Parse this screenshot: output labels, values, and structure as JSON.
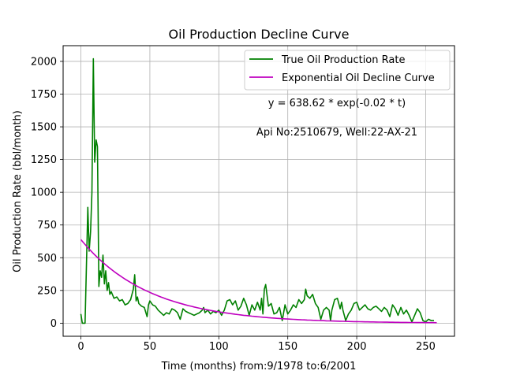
{
  "chart_data": {
    "type": "line",
    "title": "Oil Production Decline Curve",
    "xlabel": "Time (months) from:9/1978 to:6/2001",
    "ylabel": "Oil Production Rate (bbl/month)",
    "xlim": [
      -12.9,
      270.9
    ],
    "ylim": [
      -100,
      2120
    ],
    "xticks": [
      0,
      50,
      100,
      150,
      200,
      250
    ],
    "yticks": [
      0,
      250,
      500,
      750,
      1000,
      1250,
      1500,
      1750,
      2000
    ],
    "grid": true,
    "legend_position": "top-right",
    "annotations": [
      "y = 638.62 * exp(-0.02 * t)",
      "Api No:2510679, Well:22-AX-21"
    ],
    "series": [
      {
        "name": "True Oil Production Rate",
        "color": "#008000",
        "x": [
          0,
          1,
          3,
          5,
          6,
          7,
          8,
          9,
          10,
          11,
          12,
          13,
          14,
          15,
          16,
          17,
          18,
          19,
          20,
          21,
          22,
          24,
          26,
          28,
          30,
          32,
          34,
          36,
          38,
          39,
          40,
          41,
          42,
          44,
          46,
          48,
          49,
          50,
          52,
          54,
          56,
          58,
          60,
          62,
          64,
          66,
          68,
          70,
          72,
          74,
          76,
          78,
          80,
          82,
          84,
          86,
          88,
          89,
          90,
          92,
          94,
          96,
          98,
          100,
          102,
          104,
          106,
          108,
          110,
          112,
          114,
          116,
          118,
          120,
          122,
          124,
          126,
          128,
          130,
          131,
          132,
          133,
          134,
          136,
          138,
          140,
          142,
          144,
          146,
          148,
          150,
          152,
          154,
          156,
          158,
          160,
          162,
          163,
          164,
          166,
          168,
          170,
          172,
          174,
          176,
          178,
          180,
          181,
          182,
          184,
          186,
          188,
          189,
          190,
          192,
          194,
          196,
          198,
          200,
          202,
          204,
          206,
          208,
          210,
          212,
          214,
          216,
          218,
          220,
          222,
          224,
          226,
          228,
          230,
          232,
          234,
          236,
          238,
          240,
          242,
          244,
          246,
          248,
          250,
          252,
          254,
          256
        ],
        "y": [
          70,
          0,
          0,
          885,
          550,
          700,
          1000,
          2020,
          1230,
          1400,
          1350,
          280,
          400,
          350,
          520,
          300,
          400,
          250,
          310,
          220,
          240,
          190,
          200,
          170,
          180,
          140,
          150,
          180,
          260,
          370,
          170,
          200,
          150,
          130,
          120,
          50,
          140,
          170,
          140,
          130,
          100,
          80,
          60,
          80,
          70,
          110,
          100,
          80,
          30,
          110,
          90,
          80,
          70,
          60,
          70,
          80,
          100,
          120,
          80,
          100,
          70,
          90,
          80,
          100,
          60,
          100,
          170,
          180,
          140,
          170,
          100,
          130,
          190,
          140,
          60,
          140,
          100,
          160,
          100,
          190,
          70,
          260,
          295,
          130,
          150,
          70,
          80,
          120,
          20,
          140,
          70,
          100,
          140,
          120,
          180,
          150,
          180,
          260,
          210,
          190,
          220,
          150,
          120,
          30,
          100,
          120,
          100,
          20,
          100,
          180,
          190,
          110,
          160,
          100,
          20,
          70,
          100,
          150,
          160,
          100,
          120,
          140,
          110,
          100,
          120,
          130,
          110,
          90,
          120,
          100,
          50,
          140,
          110,
          60,
          120,
          70,
          100,
          60,
          10,
          60,
          110,
          80,
          20,
          10,
          30,
          20,
          20
        ]
      },
      {
        "name": "Exponential Oil Decline Curve",
        "color": "#bf00bf",
        "a": 638.62,
        "b": -0.02,
        "t_start": 0,
        "t_end": 258
      }
    ]
  }
}
